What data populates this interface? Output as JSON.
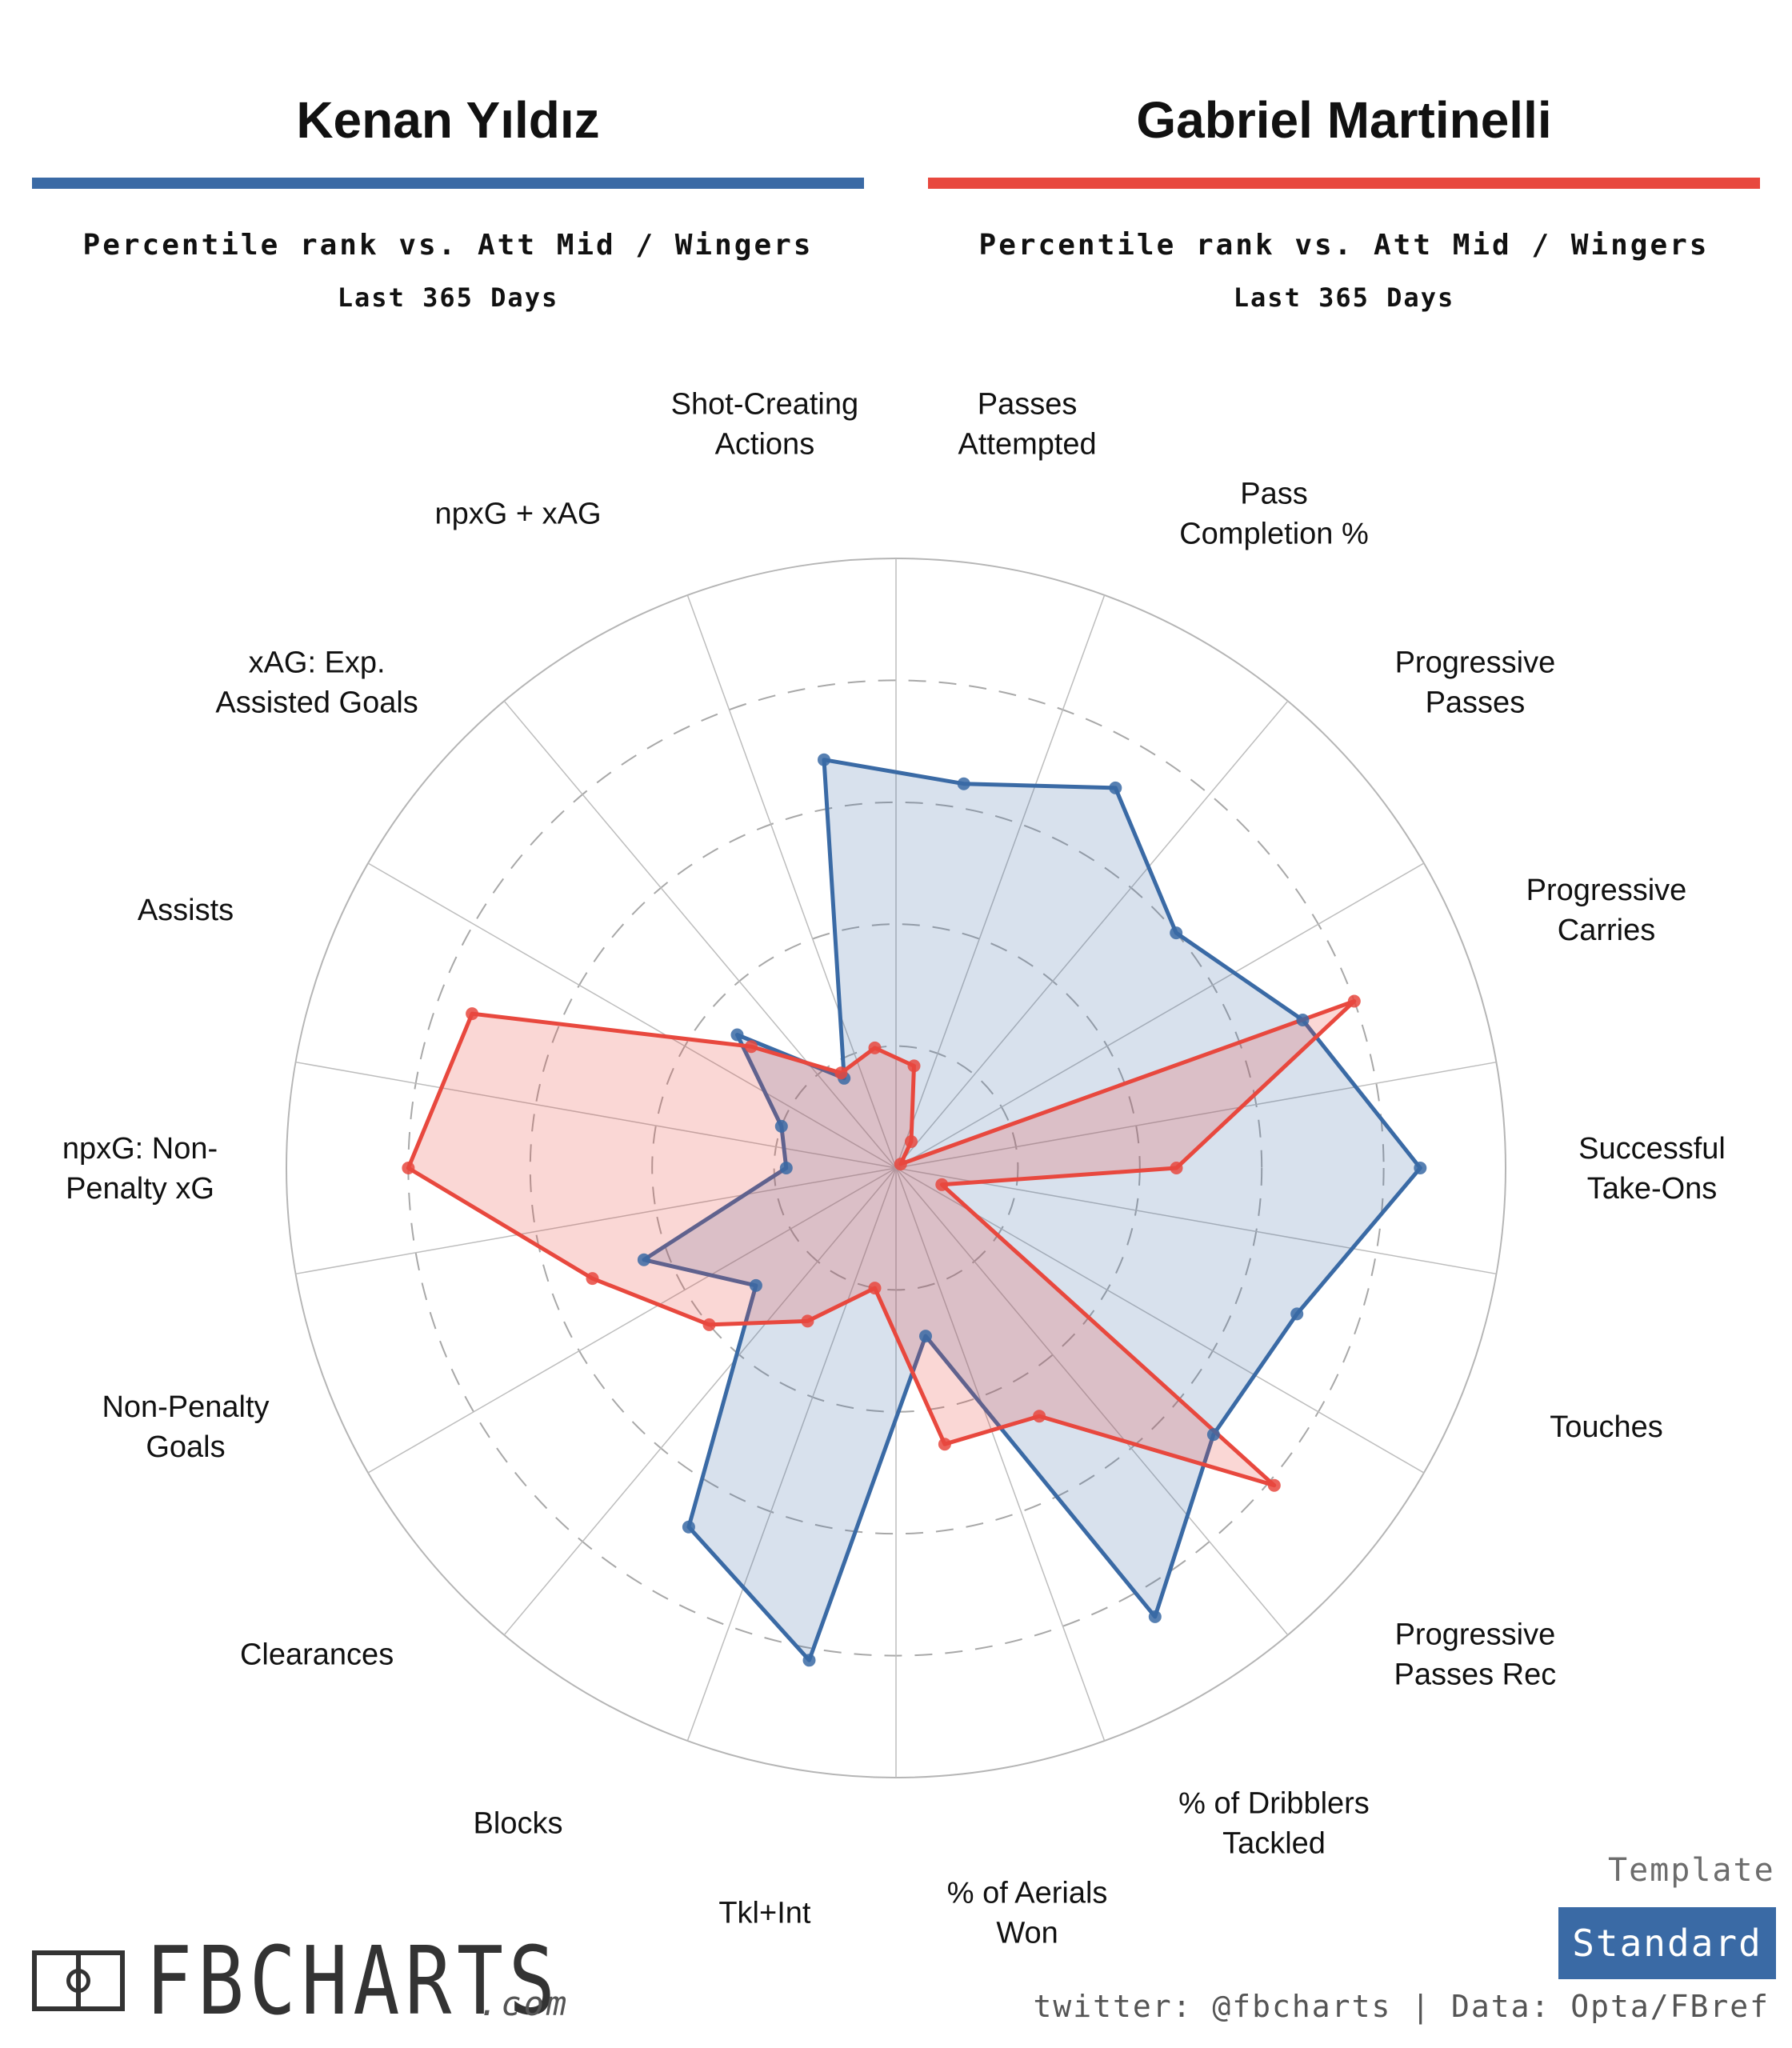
{
  "players": [
    {
      "name": "Kenan Yıldız",
      "color": "#3a6aa5",
      "subtitle": "Percentile rank vs. Att Mid / Wingers",
      "period": "Last 365 Days"
    },
    {
      "name": "Gabriel Martinelli",
      "color": "#e8483e",
      "subtitle": "Percentile rank vs. Att Mid / Wingers",
      "period": "Last 365 Days"
    }
  ],
  "chart_data": {
    "type": "radar",
    "metrics": [
      [
        "Passes",
        "Attempted"
      ],
      [
        "Pass",
        "Completion %"
      ],
      [
        "Progressive",
        "Passes"
      ],
      [
        "Progressive",
        "Carries"
      ],
      [
        "Successful",
        "Take-Ons"
      ],
      [
        "Touches"
      ],
      [
        "Progressive",
        "Passes Rec"
      ],
      [
        "% of Dribblers",
        "Tackled"
      ],
      [
        "% of Aerials",
        "Won"
      ],
      [
        "Tkl+Int"
      ],
      [
        "Blocks"
      ],
      [
        "Clearances"
      ],
      [
        "Non-Penalty",
        "Goals"
      ],
      [
        "npxG: Non-",
        "Penalty xG"
      ],
      [
        "Assists"
      ],
      [
        "xAG: Exp.",
        "Assisted Goals"
      ],
      [
        "npxG + xAG"
      ],
      [
        "Shot-Creating",
        "Actions"
      ]
    ],
    "rlim": [
      0,
      100
    ],
    "grid": true,
    "series": [
      {
        "name": "Kenan Yıldız",
        "color": "#3a6aa5",
        "values": [
          64,
          72,
          60,
          71,
          86,
          70,
          68,
          85,
          28,
          82,
          68,
          30,
          44,
          18,
          20,
          34,
          17,
          68
        ]
      },
      {
        "name": "Gabriel Martinelli",
        "color": "#e8483e",
        "values": [
          17,
          5,
          1,
          80,
          46,
          8,
          81,
          47,
          46,
          20,
          29,
          40,
          53,
          80,
          74,
          31,
          18,
          20
        ]
      }
    ]
  },
  "template": {
    "label": "Template",
    "value": "Standard"
  },
  "logo": {
    "name": "FBCHARTS",
    "suffix": ".com"
  },
  "footer": "twitter: @fbcharts | Data: Opta/FBref"
}
